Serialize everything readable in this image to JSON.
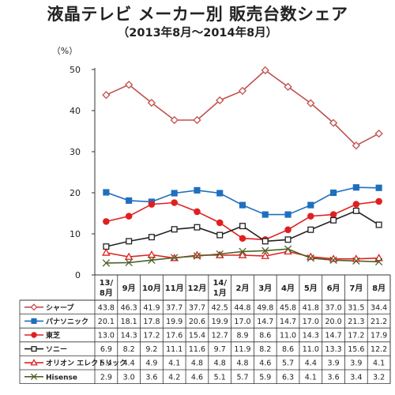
{
  "chart_data": {
    "type": "line",
    "title": "液晶テレビ メーカー別 販売台数シェア",
    "subtitle": "（2013年8月～2014年8月）",
    "ylabel": "（%）",
    "ylim": [
      0,
      50
    ],
    "yticks": [
      0,
      10,
      20,
      30,
      40,
      50
    ],
    "grid": false,
    "legend": "table-below",
    "categories": [
      {
        "line1": "13/",
        "line2": "8月"
      },
      {
        "line1": "9月",
        "line2": ""
      },
      {
        "line1": "10月",
        "line2": ""
      },
      {
        "line1": "11月",
        "line2": ""
      },
      {
        "line1": "12月",
        "line2": ""
      },
      {
        "line1": "14/",
        "line2": "1月"
      },
      {
        "line1": "2月",
        "line2": ""
      },
      {
        "line1": "3月",
        "line2": ""
      },
      {
        "line1": "4月",
        "line2": ""
      },
      {
        "line1": "5月",
        "line2": ""
      },
      {
        "line1": "6月",
        "line2": ""
      },
      {
        "line1": "7月",
        "line2": ""
      },
      {
        "line1": "8月",
        "line2": ""
      }
    ],
    "series": [
      {
        "name": "シャープ",
        "color": "#c0504d",
        "marker": "diamond-open",
        "values": [
          43.8,
          46.3,
          41.9,
          37.7,
          37.7,
          42.5,
          44.8,
          49.8,
          45.8,
          41.8,
          37.0,
          31.5,
          34.4
        ],
        "labels": [
          "43.8",
          "46.3",
          "41.9",
          "37.7",
          "37.7",
          "42.5",
          "44.8",
          "49.8",
          "45.8",
          "41.8",
          "37.0",
          "31.5",
          "34.4"
        ]
      },
      {
        "name": "パナソニック",
        "color": "#1f6fbf",
        "marker": "square-filled",
        "values": [
          20.1,
          18.1,
          17.8,
          19.9,
          20.6,
          19.9,
          17.0,
          14.7,
          14.7,
          17.0,
          20.0,
          21.3,
          21.2
        ],
        "labels": [
          "20.1",
          "18.1",
          "17.8",
          "19.9",
          "20.6",
          "19.9",
          "17.0",
          "14.7",
          "14.7",
          "17.0",
          "20.0",
          "21.3",
          "21.2"
        ]
      },
      {
        "name": "東芝",
        "color": "#e02020",
        "marker": "circle-filled",
        "values": [
          13.0,
          14.3,
          17.2,
          17.6,
          15.4,
          12.7,
          8.9,
          8.6,
          11.0,
          14.3,
          14.7,
          17.2,
          17.9
        ],
        "labels": [
          "13.0",
          "14.3",
          "17.2",
          "17.6",
          "15.4",
          "12.7",
          "8.9",
          "8.6",
          "11.0",
          "14.3",
          "14.7",
          "17.2",
          "17.9"
        ]
      },
      {
        "name": "ソニー",
        "color": "#222222",
        "marker": "square-open",
        "values": [
          6.9,
          8.2,
          9.2,
          11.1,
          11.6,
          9.7,
          11.9,
          8.2,
          8.6,
          11.0,
          13.3,
          15.6,
          12.2
        ],
        "labels": [
          "6.9",
          "8.2",
          "9.2",
          "11.1",
          "11.6",
          "9.7",
          "11.9",
          "8.2",
          "8.6",
          "11.0",
          "13.3",
          "15.6",
          "12.2"
        ]
      },
      {
        "name": "オリオン エレクトリック",
        "color": "#e02020",
        "marker": "triangle-open",
        "values": [
          5.4,
          4.4,
          4.9,
          4.1,
          4.8,
          4.8,
          4.8,
          4.6,
          5.7,
          4.4,
          3.9,
          3.9,
          4.1
        ],
        "labels": [
          "5.4",
          "4.4",
          "4.9",
          "4.1",
          "4.8",
          "4.8",
          "4.8",
          "4.6",
          "5.7",
          "4.4",
          "3.9",
          "3.9",
          "4.1"
        ]
      },
      {
        "name": "Hisense",
        "color": "#4f6228",
        "marker": "x",
        "values": [
          2.9,
          3.0,
          3.6,
          4.2,
          4.6,
          5.1,
          5.7,
          5.9,
          6.3,
          4.1,
          3.6,
          3.4,
          3.2
        ],
        "labels": [
          "2.9",
          "3.0",
          "3.6",
          "4.2",
          "4.6",
          "5.1",
          "5.7",
          "5.9",
          "6.3",
          "4.1",
          "3.6",
          "3.4",
          "3.2"
        ]
      }
    ]
  }
}
